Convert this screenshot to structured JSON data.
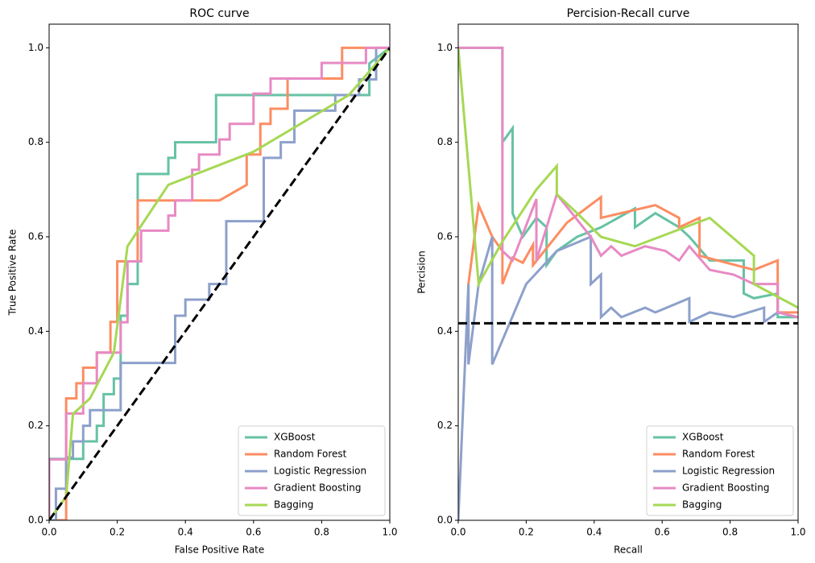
{
  "chart_data": [
    {
      "type": "line",
      "title": "ROC curve",
      "xlabel": "False Positive Rate",
      "ylabel": "True Positive Rate",
      "xlim": [
        0,
        1
      ],
      "ylim": [
        0,
        1.05
      ],
      "xticks": [
        {
          "value": 0,
          "label": "0.0"
        },
        0.2,
        0.4,
        0.6,
        0.8,
        {
          "value": 1,
          "label": "1.0"
        }
      ],
      "yticks": [
        {
          "value": 0,
          "label": "0.0"
        },
        0.2,
        0.4,
        0.6,
        0.8,
        {
          "value": 1,
          "label": "1.0"
        }
      ],
      "legend": "lower right",
      "series": [
        {
          "name": "XGBoost",
          "color": "#66c2a5",
          "x": [
            0,
            0,
            0.1,
            0.1,
            0.14,
            0.14,
            0.16,
            0.16,
            0.19,
            0.19,
            0.21,
            0.21,
            0.23,
            0.23,
            0.26,
            0.26,
            0.35,
            0.35,
            0.37,
            0.37,
            0.49,
            0.49,
            0.94,
            0.94,
            1.0
          ],
          "values": [
            0,
            0.13,
            0.13,
            0.167,
            0.167,
            0.2,
            0.2,
            0.267,
            0.267,
            0.3,
            0.3,
            0.433,
            0.433,
            0.5,
            0.5,
            0.733,
            0.733,
            0.767,
            0.767,
            0.8,
            0.8,
            0.9,
            0.9,
            0.967,
            1.0
          ]
        },
        {
          "name": "Random Forest",
          "color": "#fc8d62",
          "x": [
            0,
            0.05,
            0.05,
            0.08,
            0.08,
            0.1,
            0.1,
            0.14,
            0.14,
            0.18,
            0.18,
            0.2,
            0.2,
            0.26,
            0.26,
            0.5,
            0.58,
            0.58,
            0.62,
            0.62,
            0.65,
            0.65,
            0.7,
            0.7,
            0.86,
            0.86,
            1.0
          ],
          "values": [
            0,
            0,
            0.258,
            0.258,
            0.29,
            0.29,
            0.323,
            0.323,
            0.355,
            0.355,
            0.42,
            0.42,
            0.548,
            0.548,
            0.677,
            0.677,
            0.71,
            0.774,
            0.774,
            0.839,
            0.839,
            0.871,
            0.871,
            0.935,
            0.935,
            1.0,
            1.0
          ]
        },
        {
          "name": "Logistic Regression",
          "color": "#8da0cb",
          "x": [
            0,
            0.02,
            0.02,
            0.05,
            0.05,
            0.07,
            0.07,
            0.1,
            0.1,
            0.12,
            0.12,
            0.21,
            0.21,
            0.37,
            0.37,
            0.4,
            0.4,
            0.47,
            0.47,
            0.52,
            0.52,
            0.63,
            0.63,
            0.68,
            0.68,
            0.72,
            0.72,
            0.84,
            0.84,
            0.91,
            0.91,
            0.96,
            0.96,
            1.0
          ],
          "values": [
            0,
            0,
            0.067,
            0.067,
            0.133,
            0.133,
            0.167,
            0.167,
            0.2,
            0.2,
            0.233,
            0.233,
            0.333,
            0.333,
            0.433,
            0.433,
            0.467,
            0.467,
            0.5,
            0.5,
            0.633,
            0.633,
            0.767,
            0.767,
            0.8,
            0.8,
            0.867,
            0.867,
            0.9,
            0.9,
            0.933,
            0.933,
            1.0,
            1.0
          ]
        },
        {
          "name": "Gradient Boosting",
          "color": "#e78ac3",
          "x": [
            0,
            0,
            0.05,
            0.05,
            0.1,
            0.1,
            0.14,
            0.14,
            0.21,
            0.21,
            0.23,
            0.23,
            0.27,
            0.27,
            0.35,
            0.35,
            0.37,
            0.37,
            0.42,
            0.42,
            0.44,
            0.44,
            0.5,
            0.5,
            0.53,
            0.53,
            0.6,
            0.6,
            0.65,
            0.65,
            0.67,
            0.67,
            0.8,
            0.8,
            0.93,
            0.93,
            1.0
          ],
          "values": [
            0,
            0.129,
            0.129,
            0.226,
            0.226,
            0.29,
            0.29,
            0.355,
            0.355,
            0.419,
            0.419,
            0.548,
            0.548,
            0.613,
            0.613,
            0.645,
            0.645,
            0.677,
            0.677,
            0.742,
            0.742,
            0.774,
            0.774,
            0.806,
            0.806,
            0.839,
            0.839,
            0.903,
            0.903,
            0.935,
            0.935,
            0.935,
            0.935,
            0.968,
            0.968,
            1.0,
            1.0
          ]
        },
        {
          "name": "Bagging",
          "color": "#a6d854",
          "x": [
            0,
            0.05,
            0.07,
            0.12,
            0.19,
            0.23,
            0.35,
            0.6,
            0.88,
            1.0
          ],
          "values": [
            0,
            0.05,
            0.225,
            0.258,
            0.355,
            0.58,
            0.71,
            0.78,
            0.9,
            1.0
          ]
        }
      ],
      "baseline": {
        "color": "#000000",
        "x": [
          0,
          1
        ],
        "values": [
          0,
          1
        ]
      }
    },
    {
      "type": "line",
      "title": "Percision-Recall curve",
      "xlabel": "Recall",
      "ylabel": "Percision",
      "xlim": [
        0,
        1
      ],
      "ylim": [
        0,
        1.05
      ],
      "xticks": [
        {
          "value": 0,
          "label": "0.0"
        },
        0.2,
        0.4,
        0.6,
        0.8,
        {
          "value": 1,
          "label": "1.0"
        }
      ],
      "yticks": [
        {
          "value": 0,
          "label": "0.0"
        },
        0.2,
        0.4,
        0.6,
        0.8,
        {
          "value": 1,
          "label": "1.0"
        }
      ],
      "legend": "lower right",
      "series": [
        {
          "name": "XGBoost",
          "color": "#66c2a5",
          "x": [
            0,
            0.13,
            0.13,
            0.16,
            0.16,
            0.19,
            0.23,
            0.26,
            0.26,
            0.29,
            0.35,
            0.42,
            0.52,
            0.52,
            0.58,
            0.65,
            0.68,
            0.74,
            0.77,
            0.84,
            0.84,
            0.87,
            0.94,
            0.94,
            1.0
          ],
          "values": [
            1.0,
            1.0,
            0.8,
            0.83,
            0.65,
            0.6,
            0.64,
            0.62,
            0.54,
            0.57,
            0.6,
            0.62,
            0.66,
            0.62,
            0.65,
            0.62,
            0.6,
            0.55,
            0.55,
            0.55,
            0.48,
            0.47,
            0.48,
            0.43,
            0.43
          ]
        },
        {
          "name": "Random Forest",
          "color": "#fc8d62",
          "x": [
            0.03,
            0.03,
            0.06,
            0.1,
            0.13,
            0.13,
            0.16,
            0.19,
            0.22,
            0.22,
            0.32,
            0.42,
            0.42,
            0.58,
            0.65,
            0.65,
            0.71,
            0.71,
            0.87,
            0.94,
            0.94,
            1.0
          ],
          "values": [
            0.33,
            0.5,
            0.667,
            0.6,
            0.57,
            0.5,
            0.556,
            0.545,
            0.583,
            0.54,
            0.63,
            0.684,
            0.64,
            0.667,
            0.64,
            0.62,
            0.64,
            0.56,
            0.53,
            0.55,
            0.44,
            0.44
          ]
        },
        {
          "name": "Logistic Regression",
          "color": "#8da0cb",
          "x": [
            0,
            0.03,
            0.03,
            0.06,
            0.1,
            0.1,
            0.2,
            0.29,
            0.39,
            0.39,
            0.42,
            0.42,
            0.45,
            0.48,
            0.55,
            0.58,
            0.68,
            0.68,
            0.74,
            0.81,
            0.9,
            0.9,
            0.94,
            1.0
          ],
          "values": [
            0,
            0.5,
            0.33,
            0.5,
            0.6,
            0.33,
            0.5,
            0.57,
            0.6,
            0.5,
            0.52,
            0.43,
            0.45,
            0.43,
            0.45,
            0.44,
            0.47,
            0.42,
            0.44,
            0.43,
            0.45,
            0.42,
            0.44,
            0.43
          ]
        },
        {
          "name": "Gradient Boosting",
          "color": "#e78ac3",
          "x": [
            0,
            0.13,
            0.13,
            0.16,
            0.23,
            0.23,
            0.29,
            0.39,
            0.42,
            0.45,
            0.48,
            0.55,
            0.61,
            0.65,
            0.68,
            0.74,
            0.81,
            0.87,
            0.94,
            0.94,
            1.0
          ],
          "values": [
            1.0,
            1.0,
            0.57,
            0.55,
            0.68,
            0.55,
            0.69,
            0.6,
            0.56,
            0.58,
            0.56,
            0.58,
            0.57,
            0.55,
            0.58,
            0.53,
            0.52,
            0.5,
            0.5,
            0.44,
            0.43
          ]
        },
        {
          "name": "Bagging",
          "color": "#a6d854",
          "x": [
            0,
            0.06,
            0.13,
            0.23,
            0.29,
            0.29,
            0.35,
            0.42,
            0.52,
            0.74,
            0.87,
            0.87,
            1.0
          ],
          "values": [
            1.0,
            0.5,
            0.59,
            0.7,
            0.75,
            0.69,
            0.65,
            0.6,
            0.58,
            0.64,
            0.56,
            0.5,
            0.45
          ]
        }
      ],
      "baseline": {
        "color": "#000000",
        "x": [
          0,
          1
        ],
        "values": [
          0.417,
          0.417
        ]
      }
    }
  ]
}
